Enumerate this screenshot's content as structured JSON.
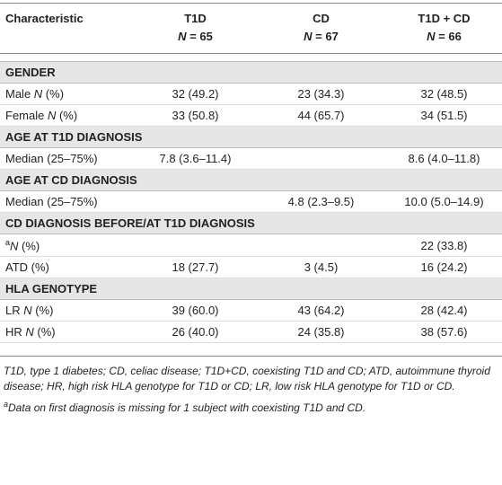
{
  "table": {
    "header": [
      "Characteristic",
      {
        "name": "T1D",
        "n": "N = 65"
      },
      {
        "name": "CD",
        "n": "N = 67"
      },
      {
        "name": "T1D + CD",
        "n": "N = 66"
      }
    ],
    "sections": [
      {
        "title": "GENDER",
        "rows": [
          [
            {
              "text": "Male N (%)"
            },
            "32 (49.2)",
            "23 (34.3)",
            "32 (48.5)"
          ],
          [
            {
              "text": "Female N (%)"
            },
            "33 (50.8)",
            "44 (65.7)",
            "34 (51.5)"
          ]
        ]
      },
      {
        "title": "AGE AT T1D DIAGNOSIS",
        "rows": [
          [
            {
              "text": "Median (25–75%)"
            },
            "7.8 (3.6–11.4)",
            null,
            "8.6 (4.0–11.8)"
          ]
        ]
      },
      {
        "title": "AGE AT CD DIAGNOSIS",
        "rows": [
          [
            {
              "text": "Median (25–75%)"
            },
            null,
            "4.8 (2.3–9.5)",
            "10.0 (5.0–14.9)"
          ]
        ]
      },
      {
        "title": "CD DIAGNOSIS BEFORE/AT T1D DIAGNOSIS",
        "rows": [
          [
            {
              "sup": "a",
              "text": "N (%)"
            },
            null,
            null,
            "22 (33.8)"
          ],
          [
            {
              "text": "ATD (%)"
            },
            "18 (27.7)",
            "3 (4.5)",
            "16 (24.2)"
          ]
        ]
      },
      {
        "title": "HLA GENOTYPE",
        "rows": [
          [
            {
              "text": "LR N (%)"
            },
            "39 (60.0)",
            "43 (64.2)",
            "28 (42.4)"
          ],
          [
            {
              "text": "HR N (%)"
            },
            "26 (40.0)",
            "24 (35.8)",
            "38 (57.6)"
          ]
        ]
      }
    ]
  },
  "footnotes": [
    {
      "text": "T1D, type 1 diabetes; CD, celiac disease; T1D+CD, coexisting T1D and CD; ATD, autoimmune thyroid disease; HR, high risk HLA genotype for T1D or CD; LR, low risk HLA genotype for T1D or CD."
    },
    {
      "sup": "a",
      "text": "Data on first diagnosis is missing for 1 subject with coexisting T1D and CD."
    }
  ]
}
